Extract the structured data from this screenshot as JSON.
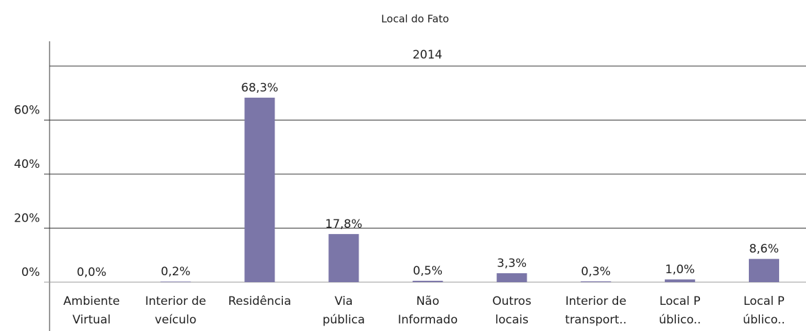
{
  "chart_data": {
    "type": "bar",
    "title": "Local do Fato",
    "header": "2014",
    "categories": [
      [
        "Ambiente",
        "Virtual"
      ],
      [
        "Interior de",
        "veículo"
      ],
      [
        "Residência"
      ],
      [
        "Via",
        "pública"
      ],
      [
        "Não",
        "Informado"
      ],
      [
        "Outros",
        "locais"
      ],
      [
        "Interior de",
        "transport.."
      ],
      [
        "Local P",
        "úblico.."
      ],
      [
        "Local P",
        "úblico.."
      ]
    ],
    "values": [
      0.0,
      0.2,
      68.3,
      17.8,
      0.5,
      3.3,
      0.3,
      1.0,
      8.6
    ],
    "value_labels": [
      "0,0%",
      "0,2%",
      "68,3%",
      "17,8%",
      "0,5%",
      "3,3%",
      "0,3%",
      "1,0%",
      "8,6%"
    ],
    "color": "#7b76a8",
    "ylim": [
      0,
      80
    ],
    "yticks": [
      {
        "value": 0,
        "label": "0%"
      },
      {
        "value": 20,
        "label": "20%"
      },
      {
        "value": 40,
        "label": "40%"
      },
      {
        "value": 60,
        "label": "60%"
      }
    ],
    "grid": true
  }
}
